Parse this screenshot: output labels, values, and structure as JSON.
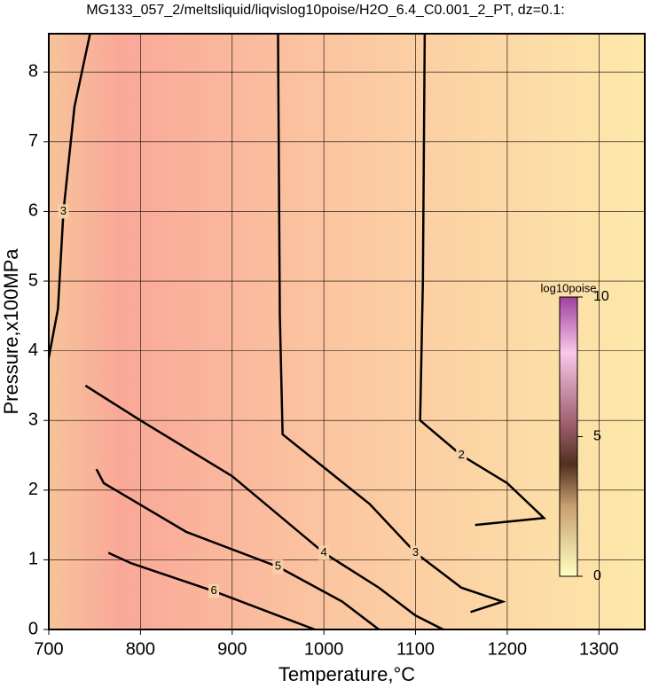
{
  "chart_data": {
    "type": "contour",
    "title": "MG133_057_2/meltsliquid/liqvislog10poise/H2O_6.4_C0.001_2_PT, dz=0.1:",
    "x_label": "Temperature,°C",
    "y_label": "Pressure,x100MPa",
    "xlim": [
      700,
      1350
    ],
    "ylim": [
      0,
      8.55
    ],
    "xticks": [
      700,
      800,
      900,
      1000,
      1100,
      1200,
      1300
    ],
    "yticks": [
      0,
      1,
      2,
      3,
      4,
      5,
      6,
      7,
      8
    ],
    "grid": true,
    "series": [
      {
        "name": "2",
        "color": "#000000",
        "x": [
          1110,
          1108,
          1105,
          1150,
          1200,
          1240,
          1165
        ],
        "values": [
          8.55,
          5,
          3.0,
          2.5,
          2.1,
          1.6,
          1.5
        ]
      },
      {
        "name": "3",
        "color": "#000000",
        "x": [
          950,
          952,
          955,
          1050,
          1100,
          1150,
          1195,
          1160
        ],
        "values": [
          8.55,
          4.5,
          2.8,
          1.8,
          1.1,
          0.6,
          0.4,
          0.25
        ]
      },
      {
        "name": "4",
        "color": "#000000",
        "x": [
          740,
          800,
          900,
          1000,
          1060,
          1100,
          1130
        ],
        "values": [
          3.5,
          3.0,
          2.2,
          1.1,
          0.6,
          0.2,
          0
        ]
      },
      {
        "name": "5",
        "color": "#000000",
        "x": [
          752,
          760,
          850,
          950,
          1020,
          1060
        ],
        "values": [
          2.3,
          2.1,
          1.4,
          0.9,
          0.4,
          0
        ]
      },
      {
        "name": "6",
        "color": "#000000",
        "x": [
          765,
          790,
          880,
          950,
          990
        ],
        "values": [
          1.1,
          0.95,
          0.55,
          0.2,
          0
        ]
      },
      {
        "name": "3",
        "color": "#000000",
        "x": [
          745,
          728,
          716,
          710,
          700
        ],
        "values": [
          8.55,
          7.5,
          6,
          4.6,
          3.9
        ]
      }
    ],
    "colorbar": {
      "label": "log10poise",
      "lim": [
        0,
        10
      ],
      "ticks": [
        0,
        5,
        10
      ]
    }
  }
}
